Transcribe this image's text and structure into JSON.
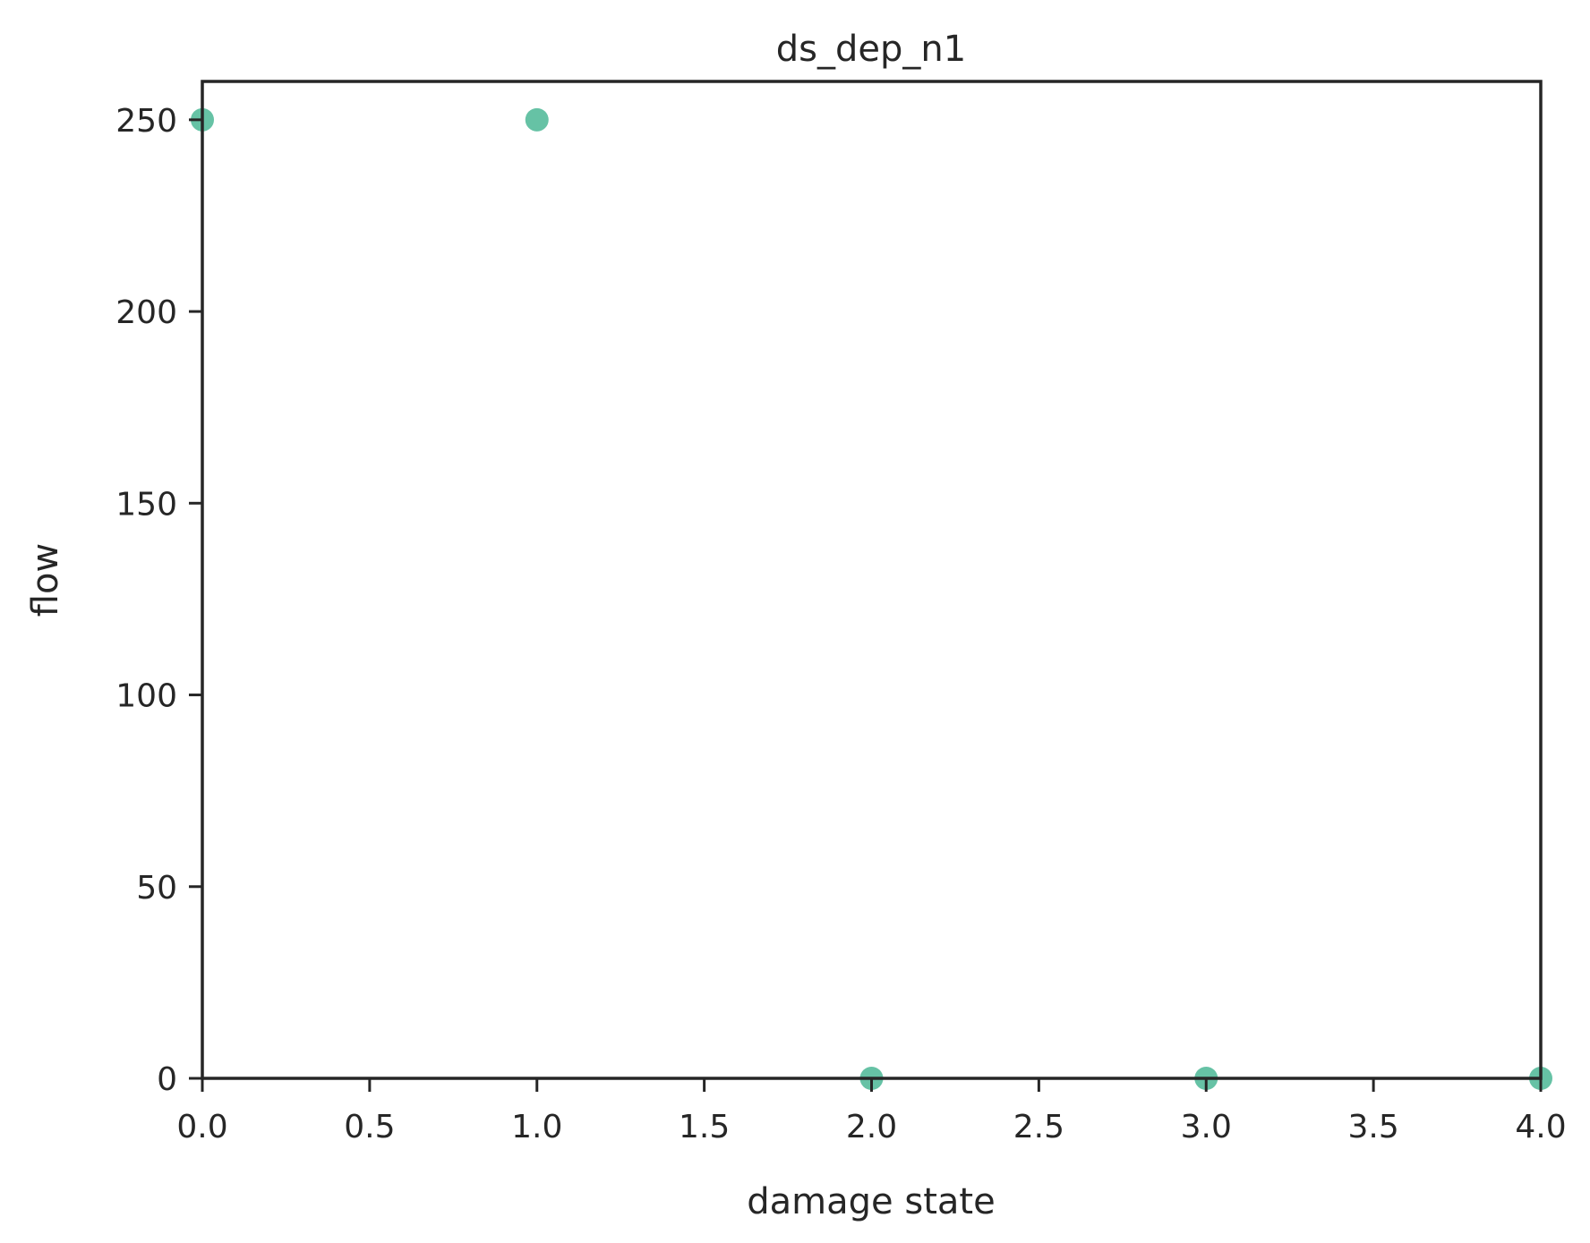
{
  "chart_data": {
    "type": "scatter",
    "title": "ds_dep_n1",
    "xlabel": "damage state",
    "ylabel": "flow",
    "x": [
      0,
      1,
      2,
      3,
      4
    ],
    "y": [
      250,
      250,
      0,
      0,
      0
    ],
    "xlim": [
      0,
      4
    ],
    "ylim": [
      0,
      260
    ],
    "xticks": [
      0.0,
      0.5,
      1.0,
      1.5,
      2.0,
      2.5,
      3.0,
      3.5,
      4.0
    ],
    "xtick_labels": [
      "0.0",
      "0.5",
      "1.0",
      "1.5",
      "2.0",
      "2.5",
      "3.0",
      "3.5",
      "4.0"
    ],
    "yticks": [
      0,
      50,
      100,
      150,
      200,
      250
    ],
    "ytick_labels": [
      "0",
      "50",
      "100",
      "150",
      "200",
      "250"
    ],
    "grid": false,
    "marker_color": "#66c2a5",
    "axis_color": "#262626"
  }
}
